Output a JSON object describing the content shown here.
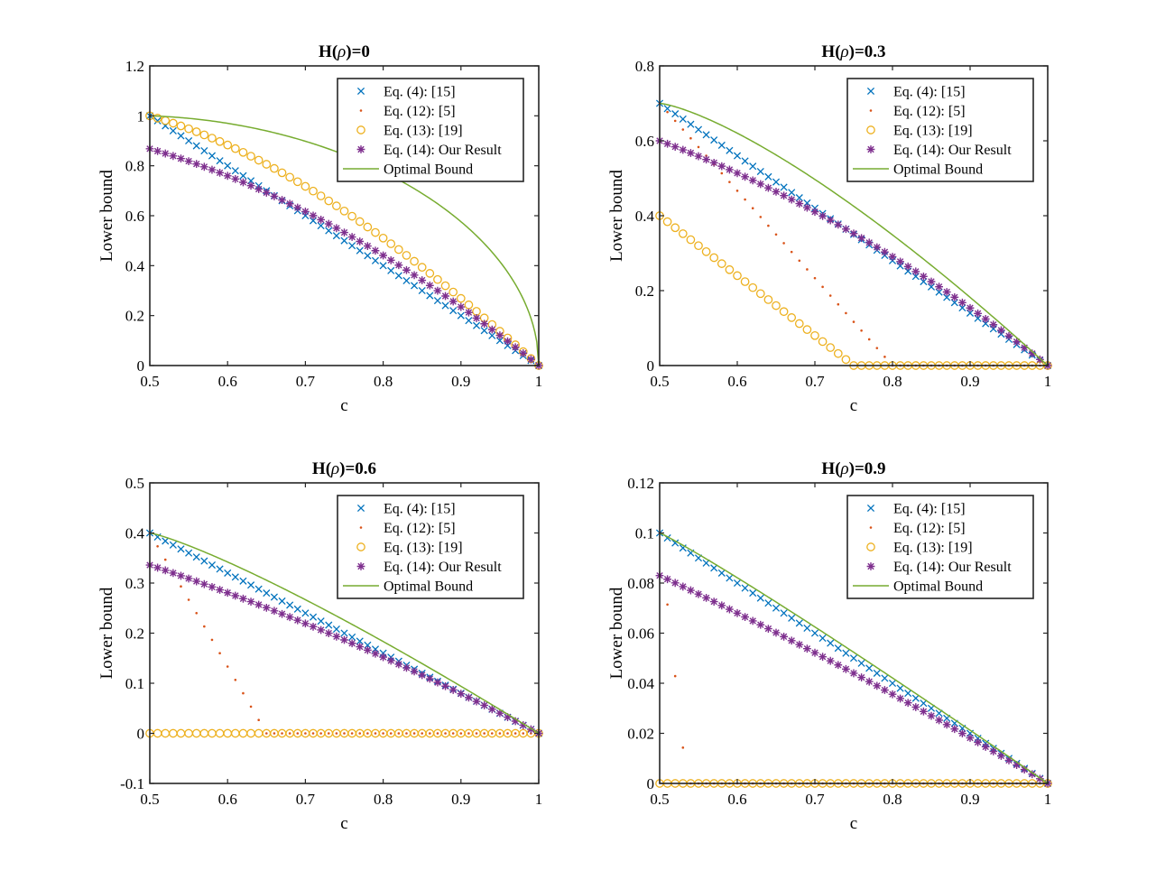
{
  "chart_data": [
    {
      "type": "line",
      "title_prefix": "H(",
      "title_symbol": "ρ",
      "title_suffix": ")=0",
      "xlabel": "c",
      "ylabel": "Lower bound",
      "xlim": [
        0.5,
        1
      ],
      "ylim": [
        0,
        1.2
      ],
      "xticks": [
        0.5,
        0.6,
        0.7,
        0.8,
        0.9,
        1
      ],
      "yticks": [
        0,
        0.2,
        0.4,
        0.6,
        0.8,
        1,
        1.2
      ],
      "xtick_labels": [
        "0.5",
        "0.6",
        "0.7",
        "0.8",
        "0.9",
        "1"
      ],
      "ytick_labels": [
        "0",
        "0.2",
        "0.4",
        "0.6",
        "0.8",
        "1",
        "1.2"
      ],
      "legend_position": "top-right",
      "H": 0,
      "series": [
        {
          "name": "Eq. (4): [15]",
          "marker": "x",
          "color": "#0072BD"
        },
        {
          "name": "Eq. (12): [5]",
          "marker": "dot",
          "color": "#D95319"
        },
        {
          "name": "Eq. (13): [19]",
          "marker": "circle",
          "color": "#EDB120"
        },
        {
          "name": "Eq. (14): Our Result",
          "marker": "star",
          "color": "#7E2F8E"
        },
        {
          "name": "Optimal Bound",
          "marker": "line",
          "color": "#77AC30"
        }
      ]
    },
    {
      "type": "line",
      "title_prefix": "H(",
      "title_symbol": "ρ",
      "title_suffix": ")=0.3",
      "xlabel": "c",
      "ylabel": "Lower bound",
      "xlim": [
        0.5,
        1
      ],
      "ylim": [
        0,
        0.8
      ],
      "xticks": [
        0.5,
        0.6,
        0.7,
        0.8,
        0.9,
        1
      ],
      "yticks": [
        0,
        0.2,
        0.4,
        0.6,
        0.8
      ],
      "xtick_labels": [
        "0.5",
        "0.6",
        "0.7",
        "0.8",
        "0.9",
        "1"
      ],
      "ytick_labels": [
        "0",
        "0.2",
        "0.4",
        "0.6",
        "0.8"
      ],
      "legend_position": "top-right",
      "H": 0.3,
      "series": [
        {
          "name": "Eq. (4): [15]",
          "marker": "x",
          "color": "#0072BD"
        },
        {
          "name": "Eq. (12): [5]",
          "marker": "dot",
          "color": "#D95319"
        },
        {
          "name": "Eq. (13): [19]",
          "marker": "circle",
          "color": "#EDB120"
        },
        {
          "name": "Eq. (14): Our Result",
          "marker": "star",
          "color": "#7E2F8E"
        },
        {
          "name": "Optimal Bound",
          "marker": "line",
          "color": "#77AC30"
        }
      ]
    },
    {
      "type": "line",
      "title_prefix": "H(",
      "title_symbol": "ρ",
      "title_suffix": ")=0.6",
      "xlabel": "c",
      "ylabel": "Lower bound",
      "xlim": [
        0.5,
        1
      ],
      "ylim": [
        -0.1,
        0.5
      ],
      "xticks": [
        0.5,
        0.6,
        0.7,
        0.8,
        0.9,
        1
      ],
      "yticks": [
        -0.1,
        0,
        0.1,
        0.2,
        0.3,
        0.4,
        0.5
      ],
      "xtick_labels": [
        "0.5",
        "0.6",
        "0.7",
        "0.8",
        "0.9",
        "1"
      ],
      "ytick_labels": [
        "-0.1",
        "0",
        "0.1",
        "0.2",
        "0.3",
        "0.4",
        "0.5"
      ],
      "legend_position": "top-right",
      "H": 0.6,
      "series": [
        {
          "name": "Eq. (4): [15]",
          "marker": "x",
          "color": "#0072BD"
        },
        {
          "name": "Eq. (12): [5]",
          "marker": "dot",
          "color": "#D95319"
        },
        {
          "name": "Eq. (13): [19]",
          "marker": "circle",
          "color": "#EDB120"
        },
        {
          "name": "Eq. (14): Our Result",
          "marker": "star",
          "color": "#7E2F8E"
        },
        {
          "name": "Optimal Bound",
          "marker": "line",
          "color": "#77AC30"
        }
      ]
    },
    {
      "type": "line",
      "title_prefix": "H(",
      "title_symbol": "ρ",
      "title_suffix": ")=0.9",
      "xlabel": "c",
      "ylabel": "Lower bound",
      "xlim": [
        0.5,
        1
      ],
      "ylim": [
        0,
        0.12
      ],
      "xticks": [
        0.5,
        0.6,
        0.7,
        0.8,
        0.9,
        1
      ],
      "yticks": [
        0,
        0.02,
        0.04,
        0.06,
        0.08,
        0.1,
        0.12
      ],
      "xtick_labels": [
        "0.5",
        "0.6",
        "0.7",
        "0.8",
        "0.9",
        "1"
      ],
      "ytick_labels": [
        "0",
        "0.02",
        "0.04",
        "0.06",
        "0.08",
        "0.1",
        "0.12"
      ],
      "legend_position": "top-right",
      "H": 0.9,
      "series": [
        {
          "name": "Eq. (4): [15]",
          "marker": "x",
          "color": "#0072BD"
        },
        {
          "name": "Eq. (12): [5]",
          "marker": "dot",
          "color": "#D95319"
        },
        {
          "name": "Eq. (13): [19]",
          "marker": "circle",
          "color": "#EDB120"
        },
        {
          "name": "Eq. (14): Our Result",
          "marker": "star",
          "color": "#7E2F8E"
        },
        {
          "name": "Optimal Bound",
          "marker": "line",
          "color": "#77AC30"
        }
      ]
    }
  ]
}
